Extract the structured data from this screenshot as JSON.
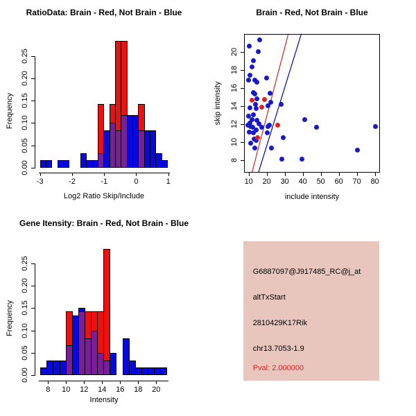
{
  "colors": {
    "hist_blue": "#0808e0",
    "hist_red": "#ee0f0f",
    "overlap_purple": "#781e96",
    "point_blue": "#1919cc",
    "point_red": "#e02020",
    "line_red": "#e02020",
    "line_blue": "#0000bb",
    "panel_pink": "#e8c6bd",
    "pval_red": "#dd2222",
    "axis_black": "#000000"
  },
  "chart_data": [
    {
      "id": "ratio_hist",
      "type": "bar",
      "subtype": "overlaid-histogram",
      "title": "RatioData: Brain - Red, Not Brain - Blue",
      "xlabel": "Log2 Ratio Skip/Include",
      "ylabel": "Frequency",
      "x_ticks": [
        "-3",
        "-2",
        "-1",
        "0",
        "1"
      ],
      "y_ticks": [
        "0.00",
        "0.05",
        "0.10",
        "0.15",
        "0.20",
        "0.25"
      ],
      "xlim": [
        -3.25,
        1.15
      ],
      "ylim": [
        0,
        0.3
      ],
      "bin_width": 0.18,
      "legend_note": "red = Brain, blue = Not Brain, purple = overlap",
      "bars": [
        {
          "x": -3.0,
          "blue": 0.017,
          "red": 0
        },
        {
          "x": -2.82,
          "blue": 0.017,
          "red": 0
        },
        {
          "x": -2.46,
          "blue": 0.017,
          "red": 0
        },
        {
          "x": -2.28,
          "blue": 0.017,
          "red": 0
        },
        {
          "x": -1.74,
          "blue": 0.033,
          "red": 0
        },
        {
          "x": -1.56,
          "blue": 0.017,
          "red": 0
        },
        {
          "x": -1.38,
          "blue": 0.017,
          "red": 0
        },
        {
          "x": -1.2,
          "blue": 0.033,
          "red": 0.143
        },
        {
          "x": -1.02,
          "blue": 0.083,
          "red": 0
        },
        {
          "x": -0.84,
          "blue": 0.1,
          "red": 0.143
        },
        {
          "x": -0.66,
          "blue": 0.083,
          "red": 0.283
        },
        {
          "x": -0.48,
          "blue": 0.117,
          "red": 0.283
        },
        {
          "x": -0.3,
          "blue": 0.117,
          "red": 0
        },
        {
          "x": -0.12,
          "blue": 0.117,
          "red": 0
        },
        {
          "x": 0.06,
          "blue": 0.083,
          "red": 0.143
        },
        {
          "x": 0.24,
          "blue": 0.083,
          "red": 0
        },
        {
          "x": 0.42,
          "blue": 0.083,
          "red": 0
        },
        {
          "x": 0.6,
          "blue": 0.033,
          "red": 0
        },
        {
          "x": 0.78,
          "blue": 0.017,
          "red": 0
        }
      ]
    },
    {
      "id": "scatter",
      "type": "scatter",
      "title": "Brain - Red, Not Brain - Blue",
      "xlabel": "include intensity",
      "ylabel": "skip intensity",
      "x_ticks": [
        "10",
        "20",
        "30",
        "40",
        "50",
        "60",
        "70",
        "80"
      ],
      "y_ticks": [
        "8",
        "10",
        "12",
        "14",
        "16",
        "18",
        "20"
      ],
      "xlim": [
        7.3,
        82.9
      ],
      "ylim": [
        6.6,
        22.0
      ],
      "series": [
        {
          "name": "Not Brain",
          "color": "blue",
          "points": [
            [
              10.3,
              20.6
            ],
            [
              15.9,
              21.3
            ],
            [
              15.3,
              20.0
            ],
            [
              12.7,
              19.0
            ],
            [
              12.0,
              18.3
            ],
            [
              10.7,
              17.4
            ],
            [
              9.9,
              16.9
            ],
            [
              13.3,
              16.9
            ],
            [
              14.5,
              16.6
            ],
            [
              19.9,
              17.1
            ],
            [
              12.8,
              15.5
            ],
            [
              13.2,
              15.3
            ],
            [
              22.0,
              15.4
            ],
            [
              14.6,
              14.8
            ],
            [
              13.7,
              14.2
            ],
            [
              20.5,
              14.0
            ],
            [
              10.5,
              13.8
            ],
            [
              14.0,
              13.7
            ],
            [
              22.4,
              14.4
            ],
            [
              28.0,
              14.2
            ],
            [
              12.8,
              13.0
            ],
            [
              9.9,
              12.9
            ],
            [
              11.8,
              12.5
            ],
            [
              14.6,
              12.4
            ],
            [
              10.5,
              12.1
            ],
            [
              15.6,
              12.0
            ],
            [
              9.7,
              11.9
            ],
            [
              11.2,
              11.7
            ],
            [
              12.4,
              11.6
            ],
            [
              14.1,
              11.3
            ],
            [
              10.2,
              11.1
            ],
            [
              12.8,
              11.0
            ],
            [
              17.3,
              11.6
            ],
            [
              20.8,
              11.7
            ],
            [
              21.6,
              11.9
            ],
            [
              13.1,
              10.3
            ],
            [
              14.3,
              10.2
            ],
            [
              20.4,
              11.0
            ],
            [
              29.0,
              10.5
            ],
            [
              11.2,
              9.9
            ],
            [
              13.3,
              9.3
            ],
            [
              22.5,
              9.3
            ],
            [
              28.2,
              8.1
            ],
            [
              39.5,
              8.1
            ],
            [
              41.0,
              12.5
            ],
            [
              47.5,
              11.6
            ],
            [
              70.3,
              9.1
            ],
            [
              80.3,
              11.7
            ]
          ]
        },
        {
          "name": "Brain",
          "color": "red",
          "points": [
            [
              12.0,
              14.6
            ],
            [
              18.9,
              14.7
            ],
            [
              17.3,
              13.9
            ],
            [
              15.0,
              10.5
            ],
            [
              26.2,
              11.9
            ]
          ]
        }
      ],
      "lines": [
        {
          "name": "brain-fit-line",
          "color": "red",
          "x1": 11.8,
          "y1": 6.6,
          "x2": 32.0,
          "y2": 22.0
        },
        {
          "name": "notbrain-fit-line",
          "color": "blue",
          "x1": 15.4,
          "y1": 6.6,
          "x2": 39.2,
          "y2": 22.0
        }
      ]
    },
    {
      "id": "gene_hist",
      "type": "bar",
      "subtype": "overlaid-histogram",
      "title": "Gene Itensity: Brain - Red, Not Brain - Blue",
      "xlabel": "Intensity",
      "ylabel": "Frequency",
      "x_ticks": [
        "8",
        "10",
        "12",
        "14",
        "16",
        "18",
        "20"
      ],
      "y_ticks": [
        "0.00",
        "0.05",
        "0.10",
        "0.15",
        "0.20",
        "0.25"
      ],
      "xlim": [
        6.6,
        22.0
      ],
      "ylim": [
        0,
        0.3
      ],
      "bin_width": 0.7,
      "legend_note": "red = Brain, blue = Not Brain, purple = overlap",
      "bars": [
        {
          "x": 7.15,
          "blue": 0.017,
          "red": 0
        },
        {
          "x": 7.85,
          "blue": 0.033,
          "red": 0
        },
        {
          "x": 8.55,
          "blue": 0.033,
          "red": 0
        },
        {
          "x": 9.25,
          "blue": 0.033,
          "red": 0
        },
        {
          "x": 9.95,
          "blue": 0.067,
          "red": 0.143
        },
        {
          "x": 10.65,
          "blue": 0.133,
          "red": 0
        },
        {
          "x": 11.35,
          "blue": 0.15,
          "red": 0.143
        },
        {
          "x": 12.05,
          "blue": 0.083,
          "red": 0.143
        },
        {
          "x": 12.75,
          "blue": 0.1,
          "red": 0.143
        },
        {
          "x": 13.45,
          "blue": 0.05,
          "red": 0.143
        },
        {
          "x": 14.15,
          "blue": 0.033,
          "red": 0.283
        },
        {
          "x": 14.85,
          "blue": 0.05,
          "red": 0
        },
        {
          "x": 16.25,
          "blue": 0.083,
          "red": 0
        },
        {
          "x": 16.95,
          "blue": 0.033,
          "red": 0
        },
        {
          "x": 17.65,
          "blue": 0.017,
          "red": 0
        },
        {
          "x": 18.35,
          "blue": 0.017,
          "red": 0
        },
        {
          "x": 19.05,
          "blue": 0.017,
          "red": 0
        },
        {
          "x": 19.75,
          "blue": 0.017,
          "red": 0
        },
        {
          "x": 20.45,
          "blue": 0.017,
          "red": 0
        }
      ]
    }
  ],
  "info_panel": {
    "lines": [
      {
        "text": "G6887097@J917485_RC@j_at",
        "color": "black"
      },
      {
        "text": "altTxStart",
        "color": "black"
      },
      {
        "text": "2810429K17Rik",
        "color": "black"
      },
      {
        "text": "chr13.7053-1.9",
        "color": "black"
      },
      {
        "text": "Pval: 2.000000",
        "color": "red"
      }
    ]
  }
}
